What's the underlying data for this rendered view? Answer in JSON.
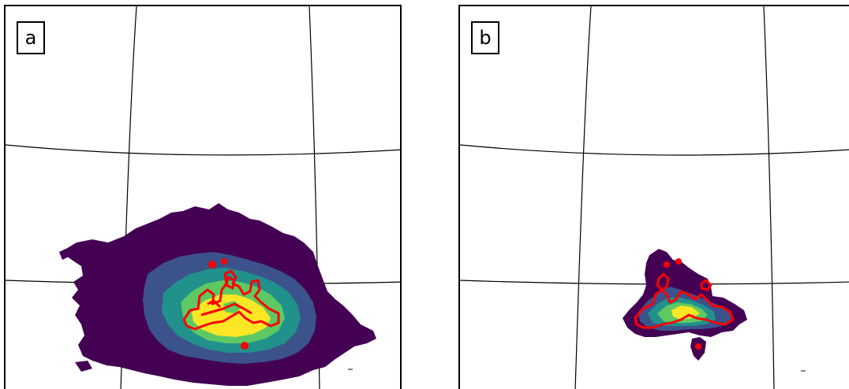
{
  "panels": [
    {
      "id": "a",
      "label": "a"
    },
    {
      "id": "b",
      "label": "b"
    }
  ],
  "colors": {
    "level_1": "#440154",
    "level_2": "#3b528b",
    "level_3": "#21918c",
    "level_4": "#5ec962",
    "level_5": "#fde725",
    "contour": "#ff0000",
    "graticule": "#000000"
  }
}
